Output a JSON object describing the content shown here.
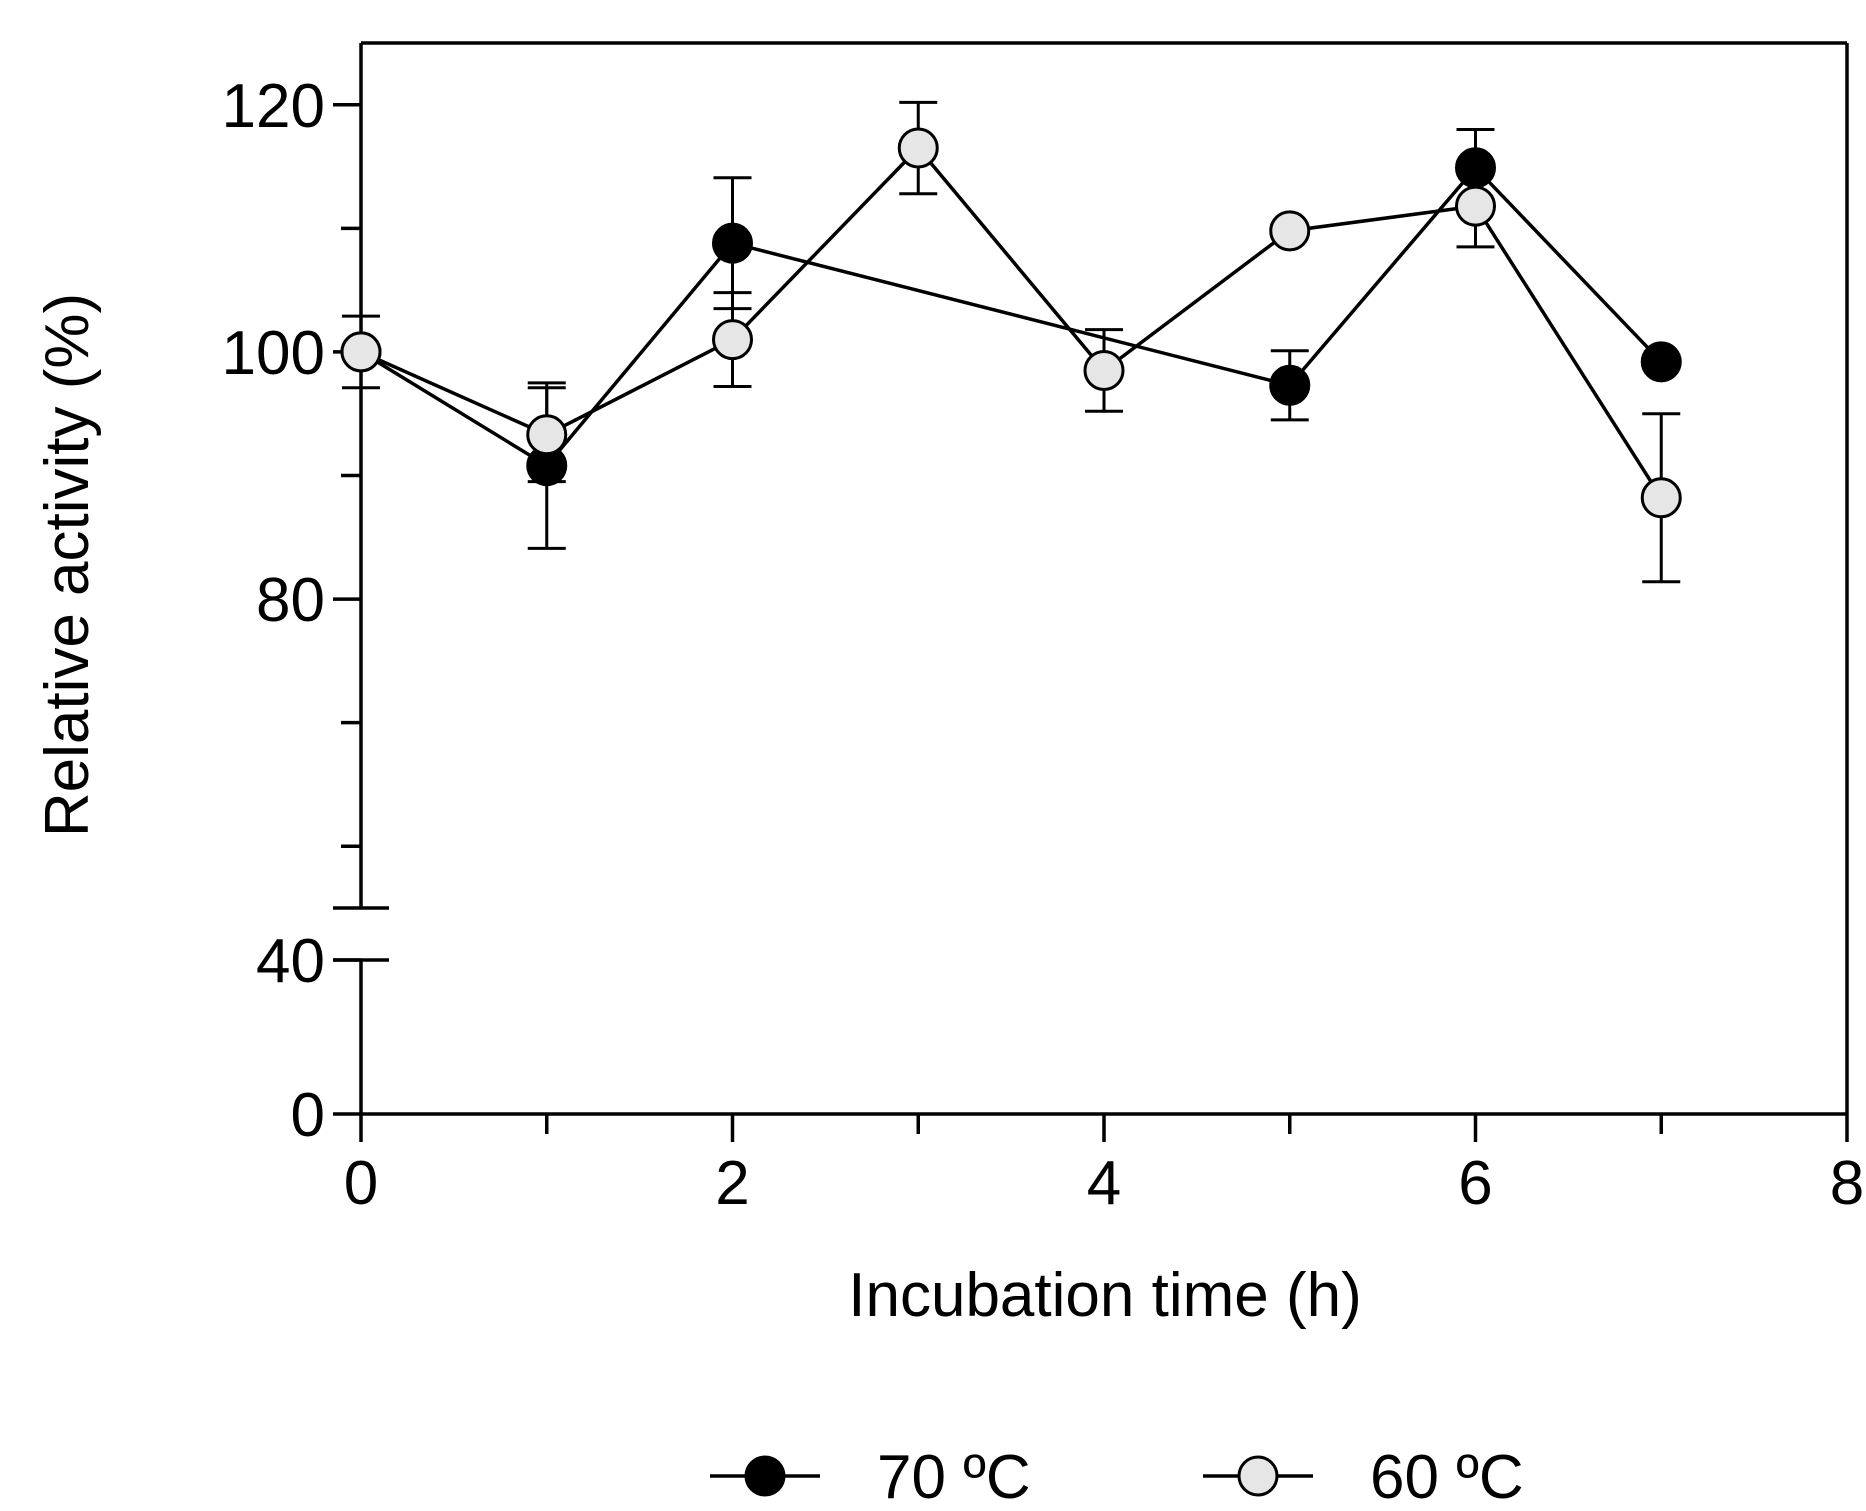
{
  "chart_data": {
    "type": "line",
    "xlabel": "Incubation time (h)",
    "ylabel": "Relative activity (%)",
    "xlim": [
      0,
      8
    ],
    "x_ticks": [
      0,
      1,
      2,
      3,
      4,
      5,
      6,
      7,
      8
    ],
    "x_tick_labels": [
      "0",
      "2",
      "4",
      "6",
      "8"
    ],
    "y_axis_break": true,
    "y_lower_segment": {
      "range": [
        0,
        40
      ],
      "ticks": [
        0,
        40
      ],
      "tick_labels": [
        "0",
        "40"
      ]
    },
    "y_upper_segment": {
      "range": [
        55,
        125
      ],
      "ticks": [
        60,
        70,
        80,
        90,
        100,
        110,
        120
      ],
      "tick_labels": [
        "80",
        "100",
        "120"
      ]
    },
    "legend_position": "bottom-center",
    "series": [
      {
        "name": "70 ºC",
        "marker_color": "#000000",
        "x": [
          0,
          1,
          2,
          5,
          6,
          7
        ],
        "values": [
          100,
          90.8,
          108.8,
          97.3,
          114.9,
          99.2
        ],
        "errors": [
          0,
          6.7,
          5.3,
          2.8,
          3.1,
          0
        ]
      },
      {
        "name": "60 ºC",
        "marker_color": "#e6e6e6",
        "x": [
          0,
          1,
          2,
          3,
          4,
          5,
          6,
          7
        ],
        "values": [
          100,
          93.3,
          101,
          116.5,
          98.5,
          109.8,
          111.8,
          88.2
        ],
        "errors": [
          2.9,
          3.8,
          3.8,
          3.7,
          3.3,
          0,
          3.3,
          6.8
        ]
      }
    ]
  }
}
